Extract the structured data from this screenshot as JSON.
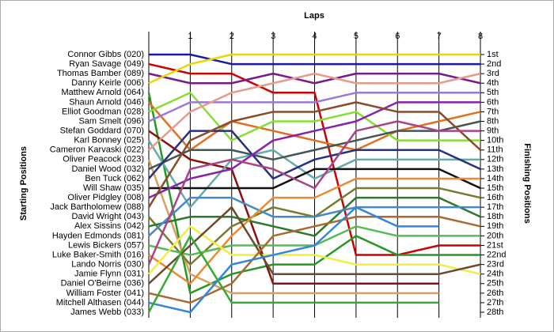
{
  "chart_data": {
    "type": "line",
    "title": "Laps",
    "y_label": "Starting Positions",
    "y2_label": "Finishing Positions",
    "x": [
      0,
      1,
      2,
      3,
      4,
      5,
      6,
      7,
      8
    ],
    "xlim": [
      0,
      8
    ],
    "xticks": [
      1,
      2,
      3,
      4,
      5,
      6,
      7,
      8
    ],
    "ylim": [
      1,
      28
    ],
    "inverted": true,
    "y2ticks": [
      {
        "value": 1,
        "label": "1st"
      },
      {
        "value": 2,
        "label": "2nd"
      },
      {
        "value": 3,
        "label": "3rd"
      },
      {
        "value": 4,
        "label": "4th"
      },
      {
        "value": 5,
        "label": "5th"
      },
      {
        "value": 6,
        "label": "6th"
      },
      {
        "value": 7,
        "label": "7th"
      },
      {
        "value": 8,
        "label": "8th"
      },
      {
        "value": 9,
        "label": "9th"
      },
      {
        "value": 10,
        "label": "10th"
      },
      {
        "value": 11,
        "label": "11th"
      },
      {
        "value": 12,
        "label": "12th"
      },
      {
        "value": 13,
        "label": "13th"
      },
      {
        "value": 14,
        "label": "14th"
      },
      {
        "value": 15,
        "label": "15th"
      },
      {
        "value": 16,
        "label": "16th"
      },
      {
        "value": 17,
        "label": "17th"
      },
      {
        "value": 18,
        "label": "18th"
      },
      {
        "value": 19,
        "label": "19th"
      },
      {
        "value": 20,
        "label": "20th"
      },
      {
        "value": 21,
        "label": "21st"
      },
      {
        "value": 22,
        "label": "22nd"
      },
      {
        "value": 23,
        "label": "23rd"
      },
      {
        "value": 24,
        "label": "24th"
      },
      {
        "value": 25,
        "label": "25th"
      },
      {
        "value": 26,
        "label": "26th"
      },
      {
        "value": 27,
        "label": "27th"
      },
      {
        "value": 28,
        "label": "28th"
      }
    ],
    "series": [
      {
        "name": "Connor Gibbs (020)",
        "color": "#1a1aa0",
        "values": [
          1,
          1,
          2,
          2,
          2,
          2,
          2,
          2,
          2
        ]
      },
      {
        "name": "Ryan Savage (049)",
        "color": "#cc0000",
        "values": [
          2,
          3,
          3,
          5,
          5,
          22,
          22,
          21,
          21
        ]
      },
      {
        "name": "Thomas Bamber (089)",
        "color": "#7a1a8a",
        "values": [
          3,
          4,
          4,
          3,
          4,
          3,
          3,
          3,
          4
        ]
      },
      {
        "name": "Danny Keirle (006)",
        "color": "#e8d800",
        "values": [
          4,
          2,
          1,
          1,
          1,
          1,
          1,
          1,
          1
        ]
      },
      {
        "name": "Matthew Arnold (064)",
        "color": "#229922",
        "values": [
          5,
          26,
          24,
          23,
          23,
          20,
          22,
          22,
          22
        ]
      },
      {
        "name": "Shaun Arnold (046)",
        "color": "#e07020",
        "values": [
          6,
          11,
          8,
          9,
          10,
          11,
          9,
          8,
          7
        ]
      },
      {
        "name": "Elliot Goodman (028)",
        "color": "#88dd33",
        "values": [
          7,
          5,
          10,
          8,
          8,
          7,
          10,
          10,
          10
        ]
      },
      {
        "name": "Sam Smelt (096)",
        "color": "#9a7ad8",
        "values": [
          8,
          6,
          6,
          6,
          6,
          5,
          5,
          5,
          5
        ]
      },
      {
        "name": "Stefan Goddard (070)",
        "color": "#8b1010",
        "values": [
          9,
          12,
          13,
          25,
          25,
          25,
          25,
          25,
          null
        ]
      },
      {
        "name": "Karl Bonney (025)",
        "color": "#66aaaa",
        "values": [
          10,
          17,
          12,
          11,
          14,
          12,
          12,
          12,
          12
        ]
      },
      {
        "name": "Cameron Karvaski (022)",
        "color": "#e89a8a",
        "values": [
          11,
          7,
          5,
          4,
          3,
          4,
          4,
          4,
          3
        ]
      },
      {
        "name": "Oliver Peacock (023)",
        "color": "#d4a060",
        "values": [
          12,
          24,
          26,
          26,
          26,
          26,
          26,
          26,
          null
        ]
      },
      {
        "name": "Daniel Wood (032)",
        "color": "#445555",
        "values": [
          13,
          11,
          11,
          12,
          11,
          10,
          9,
          9,
          8
        ]
      },
      {
        "name": "Ben Tuck (062)",
        "color": "#283080",
        "values": [
          14,
          9,
          9,
          14,
          12,
          11,
          11,
          11,
          13
        ]
      },
      {
        "name": "Will Shaw (035)",
        "color": "#111111",
        "values": [
          15,
          15,
          15,
          15,
          13,
          13,
          13,
          13,
          15
        ]
      },
      {
        "name": "Oliver Pidgley (008)",
        "color": "#8822aa",
        "values": [
          16,
          14,
          13,
          10,
          9,
          8,
          6,
          6,
          6
        ]
      },
      {
        "name": "Jack Bartholomew (088)",
        "color": "#8b4a2a",
        "values": [
          17,
          10,
          8,
          7,
          7,
          6,
          7,
          7,
          11
        ]
      },
      {
        "name": "David Wright (043)",
        "color": "#7a7a30",
        "values": [
          18,
          23,
          19,
          17,
          18,
          15,
          15,
          15,
          16
        ]
      },
      {
        "name": "Alex Sissins (042)",
        "color": "#2a7a2a",
        "values": [
          19,
          18,
          18,
          19,
          20,
          16,
          16,
          16,
          18
        ]
      },
      {
        "name": "Hayden Edmonds (081)",
        "color": "#4488cc",
        "values": [
          20,
          16,
          16,
          18,
          18,
          17,
          17,
          17,
          17
        ]
      },
      {
        "name": "Lewis Bickers (057)",
        "color": "#55bb55",
        "values": [
          21,
          22,
          21,
          21,
          21,
          19,
          20,
          20,
          20
        ]
      },
      {
        "name": "Luke Baker-Smith (016)",
        "color": "#ee8833",
        "values": [
          22,
          25,
          20,
          16,
          16,
          14,
          14,
          14,
          14
        ]
      },
      {
        "name": "Lando Norris (030)",
        "color": "#aa4488",
        "values": [
          23,
          13,
          12,
          13,
          15,
          9,
          8,
          9,
          9
        ]
      },
      {
        "name": "Jamie Flynn (031)",
        "color": "#eeee44",
        "values": [
          24,
          19,
          22,
          22,
          22,
          23,
          23,
          23,
          24
        ]
      },
      {
        "name": "Daniel O'Beirne (036)",
        "color": "#6a4a30",
        "values": [
          25,
          21,
          17,
          24,
          24,
          24,
          24,
          24,
          23
        ]
      },
      {
        "name": "William Foster (041)",
        "color": "#a86a30",
        "values": [
          26,
          27,
          25,
          20,
          19,
          18,
          18,
          18,
          19
        ]
      },
      {
        "name": "Mitchell Althasen (044)",
        "color": "#3388dd",
        "values": [
          27,
          28,
          23,
          22,
          21,
          17,
          19,
          19,
          null
        ]
      },
      {
        "name": "James Webb (033)",
        "color": "#33aa33",
        "values": [
          28,
          20,
          27,
          27,
          27,
          27,
          27,
          27,
          null
        ]
      }
    ]
  }
}
